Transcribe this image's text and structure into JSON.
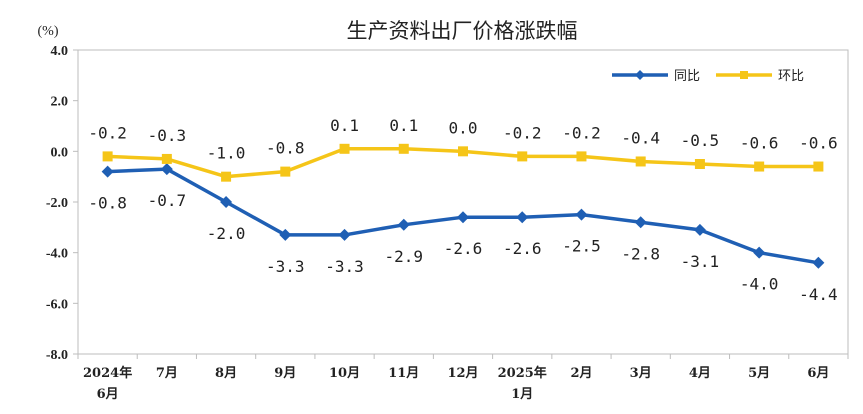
{
  "chart_data": {
    "type": "line",
    "title": "生产资料出厂价格涨跌幅",
    "unit_label": "(%)",
    "categories": [
      [
        "2024年",
        "6月"
      ],
      [
        "7月"
      ],
      [
        "8月"
      ],
      [
        "9月"
      ],
      [
        "10月"
      ],
      [
        "11月"
      ],
      [
        "12月"
      ],
      [
        "2025年",
        "1月"
      ],
      [
        "2月"
      ],
      [
        "3月"
      ],
      [
        "4月"
      ],
      [
        "5月"
      ],
      [
        "6月"
      ]
    ],
    "yticks": [
      "4.0",
      "2.0",
      "0.0",
      "-2.0",
      "-4.0",
      "-6.0",
      "-8.0"
    ],
    "ylim": [
      -8,
      4
    ],
    "grid": false,
    "legend_position": "top-right",
    "series": [
      {
        "name": "同比",
        "color": "#1f5fb4",
        "marker": "diamond",
        "values": [
          -0.8,
          -0.7,
          -2.0,
          -3.3,
          -3.3,
          -2.9,
          -2.6,
          -2.6,
          -2.5,
          -2.8,
          -3.1,
          -4.0,
          -4.4
        ],
        "labels": [
          "-0.8",
          "-0.7",
          "-2.0",
          "-3.3",
          "-3.3",
          "-2.9",
          "-2.6",
          "-2.6",
          "-2.5",
          "-2.8",
          "-3.1",
          "-4.0",
          "-4.4"
        ]
      },
      {
        "name": "环比",
        "color": "#f5c518",
        "marker": "square",
        "values": [
          -0.2,
          -0.3,
          -1.0,
          -0.8,
          0.1,
          0.1,
          0.0,
          -0.2,
          -0.2,
          -0.4,
          -0.5,
          -0.6,
          -0.6
        ],
        "labels": [
          "-0.2",
          "-0.3",
          "-1.0",
          "-0.8",
          "0.1",
          "0.1",
          "0.0",
          "-0.2",
          "-0.2",
          "-0.4",
          "-0.5",
          "-0.6",
          "-0.6"
        ]
      }
    ]
  }
}
